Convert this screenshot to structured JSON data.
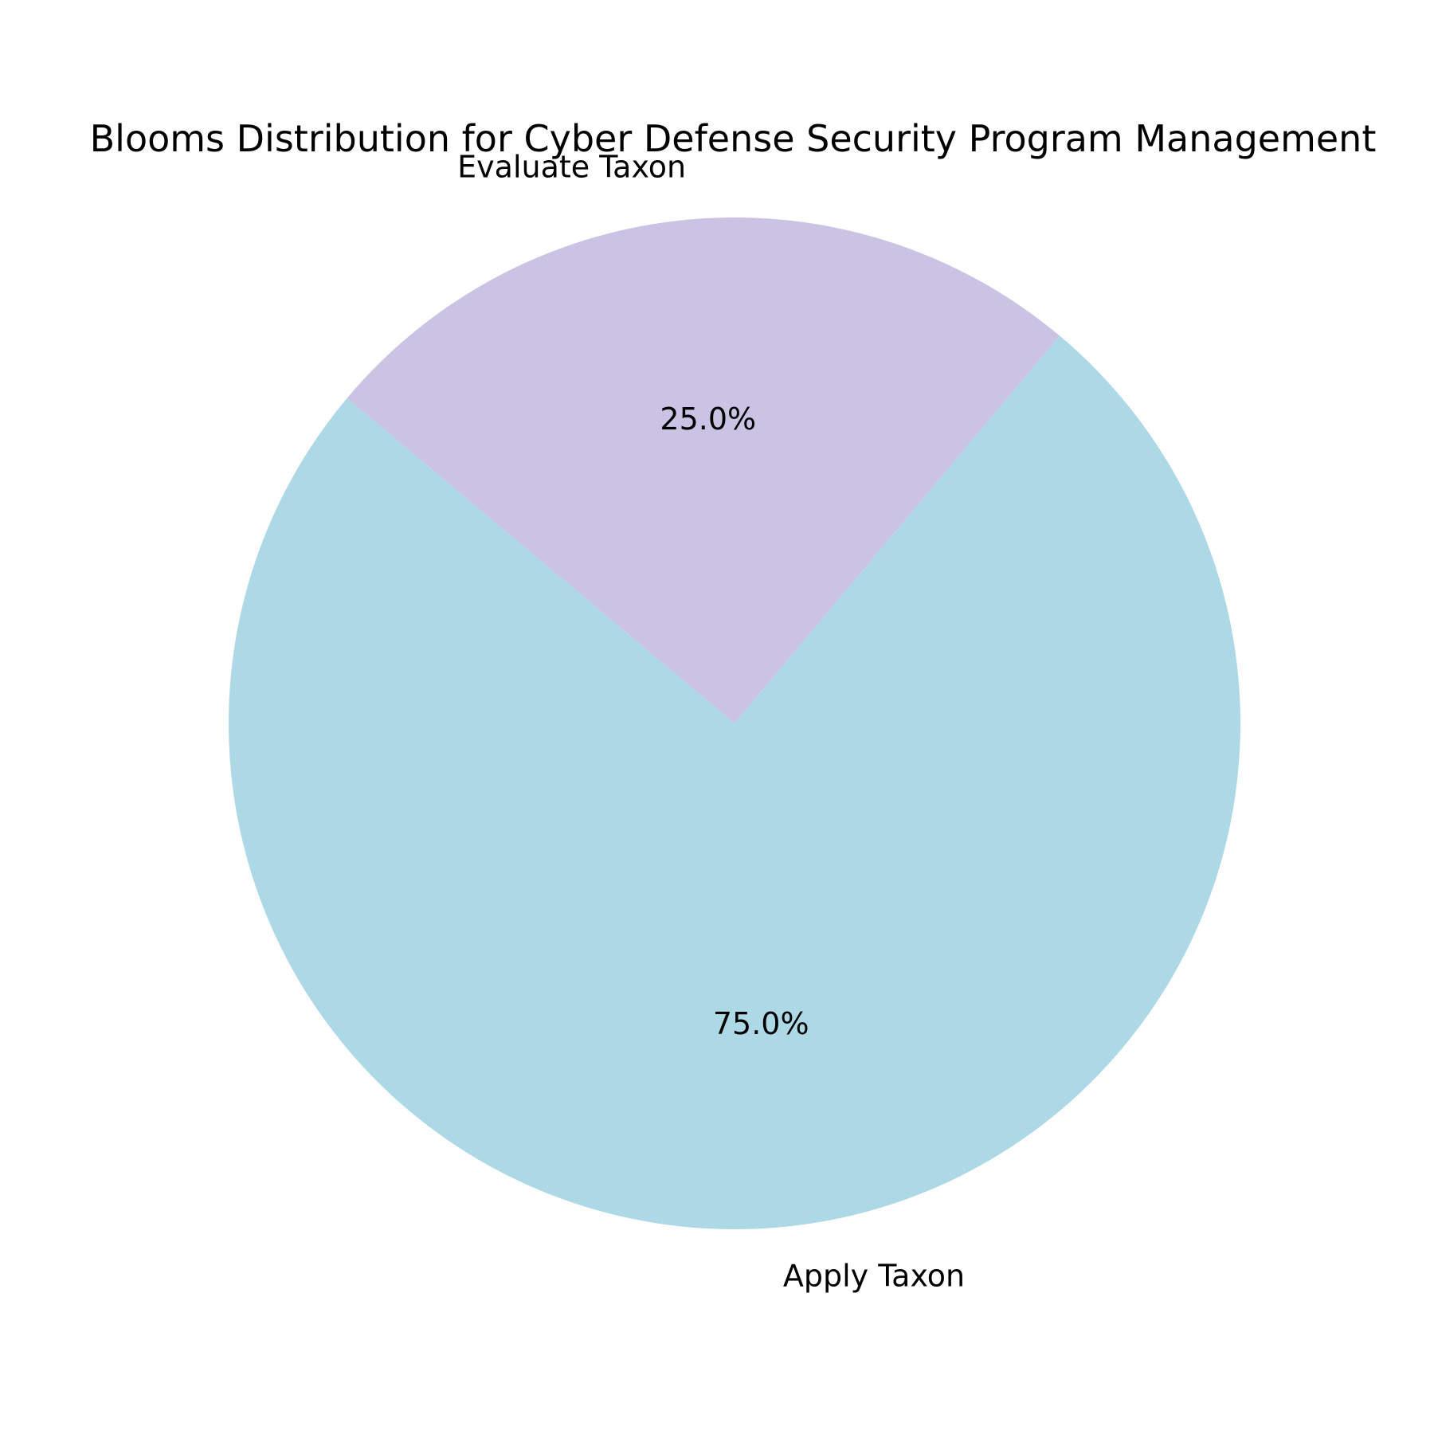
{
  "chart_data": {
    "type": "pie",
    "title": "Blooms Distribution for Cyber Defense Security Program Management",
    "labels": [
      "Apply Taxon",
      "Evaluate Taxon"
    ],
    "values": [
      75.0,
      25.0
    ],
    "value_labels": [
      "75.0%",
      "25.0%"
    ],
    "colors": [
      "#add8e6",
      "#cbc3e3"
    ],
    "start_angle_deg": 140,
    "direction": "counterclockwise",
    "legend": "none"
  }
}
